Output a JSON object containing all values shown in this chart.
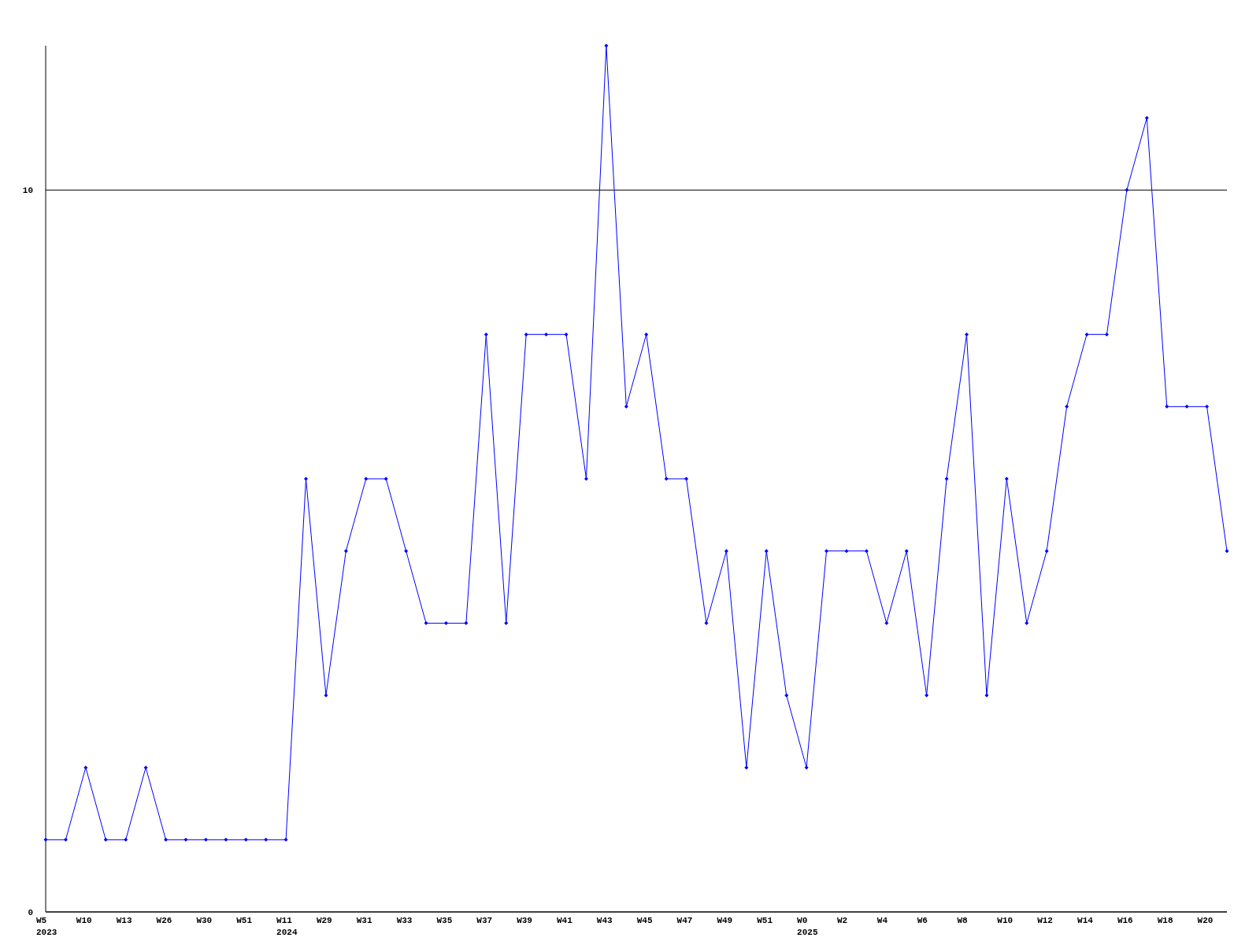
{
  "chart_data": {
    "type": "line",
    "categories": [
      "W5\n2023",
      null,
      "W10",
      null,
      "W13",
      null,
      "W26",
      null,
      "W30",
      null,
      "W51",
      null,
      "W11\n2024",
      null,
      "W29",
      null,
      "W31",
      null,
      "W33",
      null,
      "W35",
      null,
      "W37",
      null,
      "W39",
      null,
      "W41",
      null,
      "W43",
      null,
      "W45",
      null,
      "W47",
      null,
      "W49",
      null,
      "W51",
      null,
      "W0\n2025",
      null,
      "W2",
      null,
      "W4",
      null,
      "W6",
      null,
      "W8",
      null,
      "W10",
      null,
      "W12",
      null,
      "W14",
      null,
      "W16",
      null,
      "W18",
      null,
      "W20",
      null
    ],
    "series": [
      {
        "color": "#0000ff",
        "values": [
          1,
          1,
          2,
          1,
          1,
          2,
          1,
          1,
          1,
          1,
          1,
          1,
          1,
          6,
          3,
          5,
          6,
          6,
          5,
          4,
          4,
          4,
          8,
          4,
          8,
          8,
          8,
          6,
          12,
          7,
          8,
          6,
          6,
          4,
          5,
          2,
          5,
          3,
          2,
          5,
          5,
          5,
          4,
          5,
          3,
          6,
          8,
          3,
          6,
          4,
          5,
          7,
          8,
          8,
          10,
          11,
          7,
          7,
          7,
          5
        ]
      }
    ],
    "ylim": [
      0,
      12
    ],
    "yticks": [
      0,
      10
    ],
    "grid": "y",
    "marker": "diamond",
    "line_style": "solid"
  }
}
